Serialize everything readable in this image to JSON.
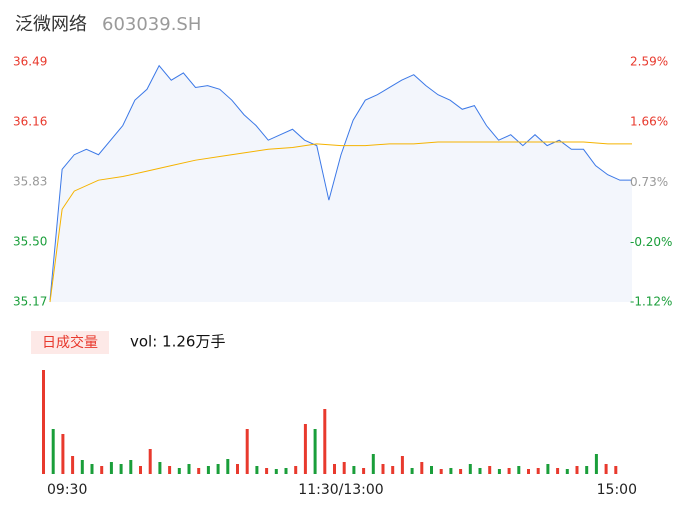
{
  "chart_data": [
    {
      "type": "line",
      "title": "泛微网络",
      "subtitle": "603039.SH",
      "xlim": [
        0,
        240
      ],
      "ylim": [
        35.17,
        36.49
      ],
      "yticks": [
        36.49,
        36.16,
        35.83,
        {
          "value": 35.5,
          "label": "35.50"
        },
        35.17
      ],
      "ytick_colors": [
        "#e8392d",
        "#e8392d",
        "#999999",
        "#1a9e3a",
        "#1a9e3a"
      ],
      "y2lim": [
        -1.12,
        2.59
      ],
      "y2ticks": [
        {
          "value": 2.59,
          "label": "2.59%"
        },
        {
          "value": 1.66,
          "label": "1.66%"
        },
        {
          "value": 0.73,
          "label": "0.73%"
        },
        {
          "value": -0.2,
          "label": "-0.20%"
        },
        {
          "value": -1.12,
          "label": "-1.12%"
        }
      ],
      "area_color": "#f3f6fc",
      "series": [
        {
          "color": "#3b78e7",
          "x": [
            0,
            5,
            10,
            15,
            20,
            25,
            30,
            35,
            40,
            45,
            50,
            55,
            60,
            65,
            70,
            75,
            80,
            85,
            90,
            95,
            100,
            105,
            110,
            115,
            120,
            125,
            130,
            135,
            140,
            145,
            150,
            155,
            160,
            165,
            170,
            175,
            180,
            185,
            190,
            195,
            200,
            205,
            210,
            215,
            220,
            225,
            230,
            235,
            240
          ],
          "values": [
            35.18,
            35.9,
            35.98,
            36.01,
            35.98,
            36.06,
            36.14,
            36.28,
            36.34,
            36.47,
            36.39,
            36.43,
            36.35,
            36.36,
            36.34,
            36.28,
            36.2,
            36.14,
            36.06,
            36.09,
            36.12,
            36.06,
            36.03,
            35.73,
            35.98,
            36.17,
            36.28,
            36.31,
            36.35,
            36.39,
            36.42,
            36.36,
            36.31,
            36.28,
            36.23,
            36.25,
            36.14,
            36.06,
            36.09,
            36.03,
            36.09,
            36.03,
            36.06,
            36.01,
            36.01,
            35.92,
            35.87,
            35.84,
            35.84
          ]
        },
        {
          "color": "#f5b300",
          "x": [
            0,
            5,
            10,
            20,
            30,
            40,
            50,
            60,
            70,
            80,
            90,
            100,
            110,
            120,
            130,
            140,
            150,
            160,
            170,
            180,
            190,
            200,
            210,
            220,
            230,
            240
          ],
          "values": [
            35.17,
            35.68,
            35.78,
            35.84,
            35.86,
            35.89,
            35.92,
            35.95,
            35.97,
            35.99,
            36.01,
            36.02,
            36.04,
            36.03,
            36.03,
            36.04,
            36.04,
            36.05,
            36.05,
            36.05,
            36.05,
            36.05,
            36.05,
            36.05,
            36.04,
            36.04
          ]
        }
      ]
    },
    {
      "type": "bar",
      "title": "日成交量",
      "annotation": "vol: 1.26万手",
      "xlim": [
        0,
        240
      ],
      "xticks": [
        {
          "value": 0,
          "label": "09:30"
        },
        {
          "value": 120,
          "label": "11:30/13:00"
        },
        {
          "value": 240,
          "label": "15:00"
        }
      ],
      "x": [
        0,
        4,
        8,
        12,
        16,
        20,
        24,
        28,
        32,
        36,
        40,
        44,
        48,
        52,
        56,
        60,
        64,
        68,
        72,
        76,
        80,
        84,
        88,
        92,
        96,
        100,
        104,
        108,
        112,
        116,
        120,
        124,
        128,
        132,
        136,
        140,
        144,
        148,
        152,
        156,
        160,
        164,
        168,
        172,
        176,
        180,
        184,
        188,
        192,
        196,
        200,
        204,
        208,
        212,
        216,
        220,
        224,
        228,
        232,
        236
      ],
      "values": [
        104,
        45,
        40,
        18,
        14,
        10,
        8,
        12,
        10,
        14,
        8,
        25,
        12,
        8,
        6,
        10,
        6,
        8,
        10,
        15,
        10,
        45,
        8,
        6,
        5,
        6,
        8,
        50,
        45,
        65,
        10,
        12,
        8,
        6,
        20,
        10,
        8,
        18,
        6,
        12,
        8,
        5,
        6,
        5,
        10,
        6,
        8,
        5,
        6,
        8,
        5,
        6,
        10,
        6,
        5,
        8,
        8,
        20,
        10,
        8
      ],
      "colors": [
        "#e8392d",
        "#1a9e3a",
        "#e8392d",
        "#e8392d",
        "#1a9e3a",
        "#1a9e3a",
        "#e8392d",
        "#1a9e3a",
        "#1a9e3a",
        "#1a9e3a",
        "#e8392d",
        "#e8392d",
        "#1a9e3a",
        "#e8392d",
        "#1a9e3a",
        "#1a9e3a",
        "#e8392d",
        "#1a9e3a",
        "#1a9e3a",
        "#1a9e3a",
        "#e8392d",
        "#e8392d",
        "#1a9e3a",
        "#e8392d",
        "#1a9e3a",
        "#1a9e3a",
        "#e8392d",
        "#e8392d",
        "#1a9e3a",
        "#e8392d",
        "#e8392d",
        "#e8392d",
        "#1a9e3a",
        "#e8392d",
        "#1a9e3a",
        "#e8392d",
        "#e8392d",
        "#e8392d",
        "#1a9e3a",
        "#e8392d",
        "#1a9e3a",
        "#e8392d",
        "#1a9e3a",
        "#e8392d",
        "#1a9e3a",
        "#1a9e3a",
        "#e8392d",
        "#1a9e3a",
        "#e8392d",
        "#1a9e3a",
        "#e8392d",
        "#e8392d",
        "#1a9e3a",
        "#e8392d",
        "#1a9e3a",
        "#e8392d",
        "#1a9e3a",
        "#1a9e3a",
        "#e8392d",
        "#e8392d"
      ]
    }
  ]
}
